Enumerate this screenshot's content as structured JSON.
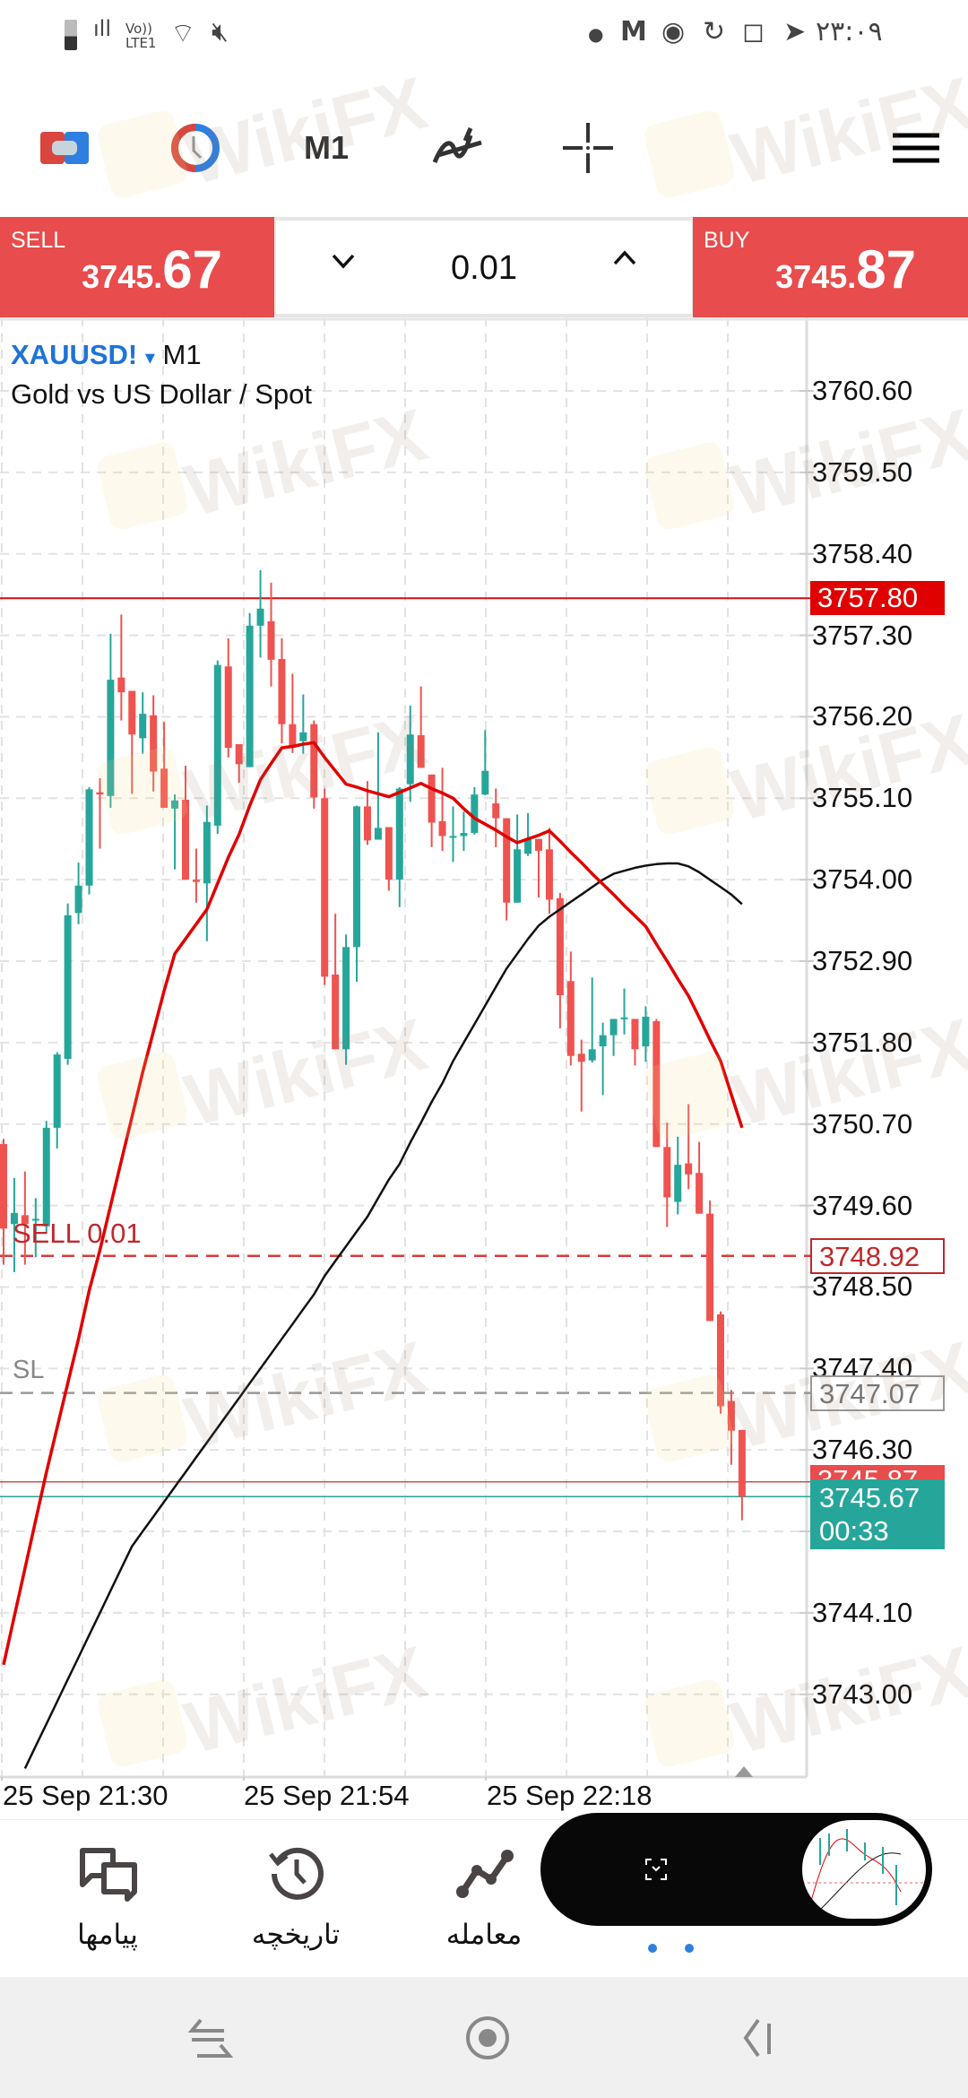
{
  "status_bar": {
    "time": "۲۳:۰۹",
    "network": "Vo)) LTE1"
  },
  "toolbar": {
    "timeframe": "M1"
  },
  "trade": {
    "sell_label": "SELL",
    "sell_price_main": "3745.",
    "sell_price_big": "67",
    "buy_label": "BUY",
    "buy_price_main": "3745.",
    "buy_price_big": "87",
    "lot": "0.01"
  },
  "symbol": {
    "name": "XAUUSD!",
    "arrow": "▾",
    "timeframe": "M1",
    "description": "Gold vs US Dollar / Spot"
  },
  "colors": {
    "bull": "#26a69a",
    "bear": "#ef5350",
    "ma_fast": "#e00000",
    "ma_slow": "#111111",
    "accent_red": "#e84c4c"
  },
  "chart_data": {
    "type": "candlestick",
    "price_ticks": [
      "3760.60",
      "3759.50",
      "3758.40",
      "3757.30",
      "3756.20",
      "3755.10",
      "3754.00",
      "3752.90",
      "3751.80",
      "3750.70",
      "3749.60",
      "3748.50",
      "3747.40",
      "3746.30",
      "3744.10",
      "3743.00"
    ],
    "time_labels": [
      "25 Sep 21:30",
      "25 Sep 21:54",
      "25 Sep 22:18"
    ],
    "ylim": [
      3741.9,
      3761.6
    ],
    "grid": true,
    "candles_ohlc": [
      [
        3750.43,
        3750.5,
        3748.8,
        3749.29
      ],
      [
        3749.35,
        3749.97,
        3748.7,
        3749.5
      ],
      [
        3749.47,
        3750.06,
        3748.8,
        3749.35
      ],
      [
        3749.4,
        3749.7,
        3748.9,
        3749.42
      ],
      [
        3749.32,
        3750.74,
        3749.23,
        3750.65
      ],
      [
        3750.65,
        3751.67,
        3750.37,
        3751.64
      ],
      [
        3751.58,
        3753.68,
        3751.5,
        3753.52
      ],
      [
        3753.55,
        3754.23,
        3753.4,
        3753.92
      ],
      [
        3753.92,
        3755.25,
        3753.8,
        3755.22
      ],
      [
        3755.18,
        3755.37,
        3754.42,
        3755.15
      ],
      [
        3755.13,
        3757.32,
        3754.97,
        3756.7
      ],
      [
        3756.73,
        3757.58,
        3756.15,
        3756.53
      ],
      [
        3756.55,
        3756.55,
        3755.16,
        3755.96
      ],
      [
        3755.91,
        3756.53,
        3755.7,
        3756.24
      ],
      [
        3756.22,
        3756.49,
        3755.19,
        3755.46
      ],
      [
        3755.5,
        3756.13,
        3754.97,
        3754.97
      ],
      [
        3754.96,
        3755.15,
        3754.14,
        3755.07
      ],
      [
        3755.08,
        3755.54,
        3754.0,
        3754.0
      ],
      [
        3754.0,
        3754.42,
        3753.69,
        3753.97
      ],
      [
        3753.95,
        3755.0,
        3753.17,
        3754.78
      ],
      [
        3754.73,
        3756.96,
        3754.62,
        3756.9
      ],
      [
        3756.88,
        3757.26,
        3755.65,
        3755.78
      ],
      [
        3755.83,
        3755.83,
        3755.31,
        3755.56
      ],
      [
        3755.52,
        3757.6,
        3755.52,
        3757.43
      ],
      [
        3757.43,
        3758.18,
        3757.0,
        3757.66
      ],
      [
        3757.49,
        3758.01,
        3756.61,
        3756.97
      ],
      [
        3756.98,
        3757.26,
        3755.84,
        3756.1
      ],
      [
        3756.1,
        3756.78,
        3755.71,
        3755.78
      ],
      [
        3755.87,
        3756.5,
        3755.7,
        3755.99
      ],
      [
        3756.1,
        3756.15,
        3754.96,
        3755.11
      ],
      [
        3755.1,
        3755.23,
        3752.58,
        3752.69
      ],
      [
        3752.72,
        3753.54,
        3751.71,
        3751.71
      ],
      [
        3751.71,
        3753.26,
        3751.5,
        3753.09
      ],
      [
        3753.09,
        3755.0,
        3752.62,
        3754.99
      ],
      [
        3754.99,
        3755.33,
        3754.47,
        3754.53
      ],
      [
        3754.54,
        3755.99,
        3754.54,
        3754.7
      ],
      [
        3754.71,
        3754.71,
        3753.85,
        3754.0
      ],
      [
        3754.0,
        3755.25,
        3753.63,
        3755.23
      ],
      [
        3755.29,
        3756.35,
        3755.05,
        3755.96
      ],
      [
        3755.95,
        3756.61,
        3755.51,
        3755.51
      ],
      [
        3755.42,
        3755.42,
        3754.44,
        3754.77
      ],
      [
        3754.79,
        3755.51,
        3754.39,
        3754.59
      ],
      [
        3754.58,
        3754.99,
        3754.24,
        3754.59
      ],
      [
        3754.59,
        3754.92,
        3754.39,
        3754.63
      ],
      [
        3754.63,
        3755.25,
        3754.61,
        3755.15
      ],
      [
        3755.15,
        3756.02,
        3755.14,
        3755.47
      ],
      [
        3755.03,
        3755.23,
        3754.44,
        3754.83
      ],
      [
        3754.83,
        3754.83,
        3753.45,
        3753.69
      ],
      [
        3753.69,
        3754.88,
        3753.69,
        3754.41
      ],
      [
        3754.35,
        3754.9,
        3754.32,
        3754.54
      ],
      [
        3754.55,
        3754.55,
        3753.76,
        3754.39
      ],
      [
        3754.41,
        3754.7,
        3753.54,
        3753.73
      ],
      [
        3753.75,
        3753.82,
        3751.99,
        3752.44
      ],
      [
        3752.63,
        3753.03,
        3751.49,
        3751.62
      ],
      [
        3751.65,
        3751.84,
        3750.87,
        3751.54
      ],
      [
        3751.56,
        3752.68,
        3751.53,
        3751.71
      ],
      [
        3751.75,
        3752.07,
        3751.09,
        3751.9
      ],
      [
        3751.9,
        3752.12,
        3751.62,
        3752.12
      ],
      [
        3752.12,
        3752.53,
        3751.91,
        3752.14
      ],
      [
        3752.12,
        3752.12,
        3751.49,
        3751.71
      ],
      [
        3751.75,
        3752.29,
        3751.54,
        3752.15
      ],
      [
        3752.09,
        3752.12,
        3750.39,
        3750.39
      ],
      [
        3750.39,
        3750.72,
        3749.31,
        3749.71
      ],
      [
        3749.65,
        3750.53,
        3749.48,
        3750.15
      ],
      [
        3750.17,
        3750.97,
        3749.82,
        3750.02
      ],
      [
        3750.04,
        3750.46,
        3749.49,
        3749.49
      ],
      [
        3749.49,
        3749.67,
        3748.04,
        3748.04
      ],
      [
        3748.13,
        3748.17,
        3746.79,
        3746.89
      ],
      [
        3746.96,
        3747.11,
        3746.1,
        3746.56
      ],
      [
        3746.57,
        3746.57,
        3745.35,
        3745.67
      ]
    ],
    "ma_fast": [
      3743.4,
      3744.05,
      3744.7,
      3745.35,
      3746.0,
      3746.6,
      3747.2,
      3747.8,
      3748.45,
      3749.0,
      3749.6,
      3750.2,
      3750.8,
      3751.4,
      3751.95,
      3752.5,
      3753.0,
      3753.2,
      3753.4,
      3753.6,
      3753.95,
      3754.3,
      3754.61,
      3755.0,
      3755.35,
      3755.57,
      3755.78,
      3755.8,
      3755.83,
      3755.85,
      3755.65,
      3755.47,
      3755.29,
      3755.25,
      3755.2,
      3755.16,
      3755.12,
      3755.18,
      3755.24,
      3755.3,
      3755.23,
      3755.17,
      3755.1,
      3754.96,
      3754.83,
      3754.75,
      3754.67,
      3754.58,
      3754.5,
      3754.55,
      3754.6,
      3754.66,
      3754.52,
      3754.37,
      3754.23,
      3754.08,
      3753.94,
      3753.8,
      3753.65,
      3753.51,
      3753.37,
      3753.13,
      3752.9,
      3752.66,
      3752.43,
      3752.14,
      3751.84,
      3751.55,
      3751.1,
      3750.65
    ],
    "ma_slow": [
      null,
      null,
      3742.0,
      3742.3,
      3742.6,
      3742.9,
      3743.2,
      3743.5,
      3743.8,
      3744.1,
      3744.4,
      3744.7,
      3745.0,
      3745.2,
      3745.4,
      3745.6,
      3745.8,
      3746.0,
      3746.2,
      3746.4,
      3746.6,
      3746.8,
      3747.0,
      3747.2,
      3747.4,
      3747.6,
      3747.8,
      3748.0,
      3748.2,
      3748.4,
      3748.65,
      3748.85,
      3749.05,
      3749.25,
      3749.45,
      3749.7,
      3749.95,
      3750.16,
      3750.45,
      3750.72,
      3751.0,
      3751.25,
      3751.55,
      3751.8,
      3752.05,
      3752.3,
      3752.55,
      3752.8,
      3753.0,
      3753.2,
      3753.38,
      3753.5,
      3753.6,
      3753.7,
      3753.8,
      3753.9,
      3754.0,
      3754.08,
      3754.12,
      3754.16,
      3754.19,
      3754.21,
      3754.22,
      3754.22,
      3754.18,
      3754.1,
      3754.0,
      3753.9,
      3753.8,
      3753.67
    ],
    "levels": {
      "high_line": {
        "price": 3757.8,
        "label": "3757.80"
      },
      "order": {
        "price": 3748.92,
        "label": "3748.92",
        "text": "SELL 0.01"
      },
      "stop_loss": {
        "price": 3747.07,
        "label": "3747.07",
        "text": "SL"
      },
      "ask": {
        "price": 3745.87,
        "label": "3745.87"
      },
      "bid": {
        "price": 3745.67,
        "label": "3745.67",
        "countdown": "00:33"
      }
    }
  },
  "bottom_nav": [
    {
      "label": "پیامها",
      "icon": "messages-icon"
    },
    {
      "label": "تاریخچه",
      "icon": "history-icon"
    },
    {
      "label": "معامله",
      "icon": "trade-icon"
    }
  ],
  "watermark": "WikiFX"
}
